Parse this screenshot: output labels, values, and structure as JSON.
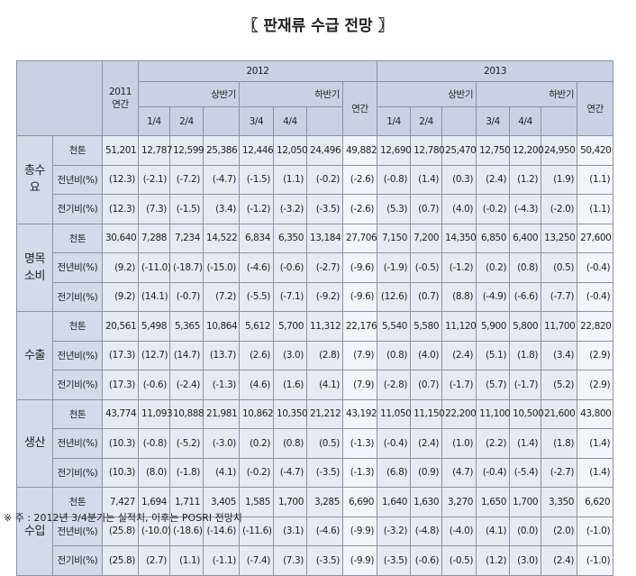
{
  "title": "〖 판재류 수급 전망 〗",
  "header": {
    "y2011": "2011\n연간",
    "y2012": "2012",
    "y2013": "2013",
    "h2012": [
      "상반기",
      "하반기"
    ],
    "h2013": [
      "상반기",
      "하반기"
    ],
    "annual2012": "연간",
    "annual2013": "연간",
    "q2012": [
      "1/4",
      "2/4",
      "3/4",
      "4/4"
    ],
    "q2013": [
      "1/4",
      "2/4",
      "3/4",
      "4/4"
    ]
  },
  "groups": [
    {
      "label": "총수요",
      "rows": [
        {
          "label": "천톤",
          "cells": [
            "51,201",
            "12,787",
            "12,599",
            "25,386",
            "12,446",
            "12,050",
            "24,496",
            "49,882",
            "12,690",
            "12,780",
            "25,470",
            "12,750",
            "12,200",
            "24,950",
            "50,420"
          ]
        },
        {
          "label": "전년비(%)",
          "cells": [
            "(12.3)",
            "(-2.1)",
            "(-7.2)",
            "(-4.7)",
            "(-1.5)",
            "(1.1)",
            "(-0.2)",
            "(-2.6)",
            "(-0.8)",
            "(1.4)",
            "(0.3)",
            "(2.4)",
            "(1.2)",
            "(1.9)",
            "(1.1)"
          ]
        },
        {
          "label": "전기비(%)",
          "cells": [
            "(12.3)",
            "(7.3)",
            "(-1.5)",
            "(3.4)",
            "(-1.2)",
            "(-3.2)",
            "(-3.5)",
            "(-2.6)",
            "(5.3)",
            "(0.7)",
            "(4.0)",
            "(-0.2)",
            "(-4.3)",
            "(-2.0)",
            "(1.1)"
          ]
        }
      ]
    },
    {
      "label": "명목소비",
      "rows": [
        {
          "label": "천톤",
          "cells": [
            "30,640",
            "7,288",
            "7,234",
            "14,522",
            "6,834",
            "6,350",
            "13,184",
            "27,706",
            "7,150",
            "7,200",
            "14,350",
            "6,850",
            "6,400",
            "13,250",
            "27,600"
          ]
        },
        {
          "label": "전년비(%)",
          "cells": [
            "(9.2)",
            "(-11.0)",
            "(-18.7)",
            "(-15.0)",
            "(-4.6)",
            "(-0.6)",
            "(-2.7)",
            "(-9.6)",
            "(-1.9)",
            "(-0.5)",
            "(-1.2)",
            "(0.2)",
            "(0.8)",
            "(0.5)",
            "(-0.4)"
          ]
        },
        {
          "label": "전기비(%)",
          "cells": [
            "(9.2)",
            "(14.1)",
            "(-0.7)",
            "(7.2)",
            "(-5.5)",
            "(-7.1)",
            "(-9.2)",
            "(-9.6)",
            "(12.6)",
            "(0.7)",
            "(8.8)",
            "(-4.9)",
            "(-6.6)",
            "(-7.7)",
            "(-0.4)"
          ]
        }
      ]
    },
    {
      "label": "수출",
      "rows": [
        {
          "label": "천톤",
          "cells": [
            "20,561",
            "5,498",
            "5,365",
            "10,864",
            "5,612",
            "5,700",
            "11,312",
            "22,176",
            "5,540",
            "5,580",
            "11,120",
            "5,900",
            "5,800",
            "11,700",
            "22,820"
          ]
        },
        {
          "label": "전년비(%)",
          "cells": [
            "(17.3)",
            "(12.7)",
            "(14.7)",
            "(13.7)",
            "(2.6)",
            "(3.0)",
            "(2.8)",
            "(7.9)",
            "(0.8)",
            "(4.0)",
            "(2.4)",
            "(5.1)",
            "(1.8)",
            "(3.4)",
            "(2.9)"
          ]
        },
        {
          "label": "전기비(%)",
          "cells": [
            "(17.3)",
            "(-0.6)",
            "(-2.4)",
            "(-1.3)",
            "(4.6)",
            "(1.6)",
            "(4.1)",
            "(7.9)",
            "(-2.8)",
            "(0.7)",
            "(-1.7)",
            "(5.7)",
            "(-1.7)",
            "(5.2)",
            "(2.9)"
          ]
        }
      ]
    },
    {
      "label": "생산",
      "rows": [
        {
          "label": "천톤",
          "cells": [
            "43,774",
            "11,093",
            "10,888",
            "21,981",
            "10,862",
            "10,350",
            "21,212",
            "43,192",
            "11,050",
            "11,150",
            "22,200",
            "11,100",
            "10,500",
            "21,600",
            "43,800"
          ]
        },
        {
          "label": "전년비(%)",
          "cells": [
            "(10.3)",
            "(-0.8)",
            "(-5.2)",
            "(-3.0)",
            "(0.2)",
            "(0.8)",
            "(0.5)",
            "(-1.3)",
            "(-0.4)",
            "(2.4)",
            "(1.0)",
            "(2.2)",
            "(1.4)",
            "(1.8)",
            "(1.4)"
          ]
        },
        {
          "label": "전기비(%)",
          "cells": [
            "(10.3)",
            "(8.0)",
            "(-1.8)",
            "(4.1)",
            "(-0.2)",
            "(-4.7)",
            "(-3.5)",
            "(-1.3)",
            "(6.8)",
            "(0.9)",
            "(4.7)",
            "(-0.4)",
            "(-5.4)",
            "(-2.7)",
            "(1.4)"
          ]
        }
      ]
    },
    {
      "label": "수입",
      "rows": [
        {
          "label": "천톤",
          "cells": [
            "7,427",
            "1,694",
            "1,711",
            "3,405",
            "1,585",
            "1,700",
            "3,285",
            "6,690",
            "1,640",
            "1,630",
            "3,270",
            "1,650",
            "1,700",
            "3,350",
            "6,620"
          ]
        },
        {
          "label": "전년비(%)",
          "cells": [
            "(25.8)",
            "(-10.0)",
            "(-18.6)",
            "(-14.6)",
            "(-11.6)",
            "(3.1)",
            "(-4.6)",
            "(-9.9)",
            "(-3.2)",
            "(-4.8)",
            "(-4.0)",
            "(4.1)",
            "(0.0)",
            "(2.0)",
            "(-1.0)"
          ]
        },
        {
          "label": "전기비(%)",
          "cells": [
            "(25.8)",
            "(2.7)",
            "(1.1)",
            "(-1.1)",
            "(-7.4)",
            "(7.3)",
            "(-3.5)",
            "(-9.9)",
            "(-3.5)",
            "(-0.6)",
            "(-0.5)",
            "(1.2)",
            "(3.0)",
            "(2.4)",
            "(-1.0)"
          ]
        }
      ]
    }
  ],
  "note": "※ 주 : 2012년 3/4분기는 실적치, 이후는 POSRI 전망치"
}
